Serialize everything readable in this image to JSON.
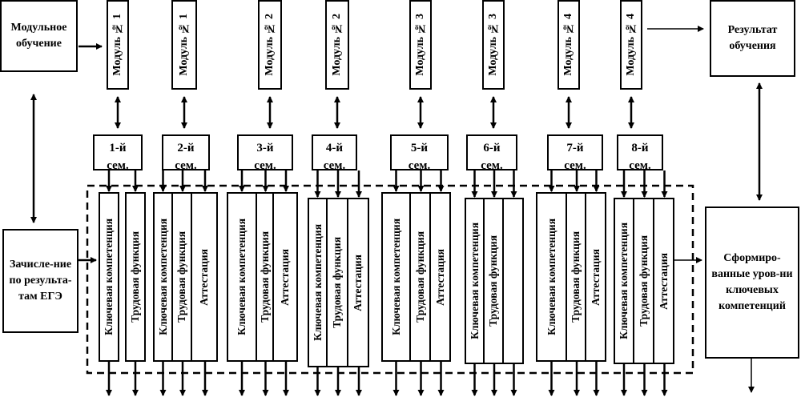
{
  "left": {
    "modular_learning": "Модульное обучение",
    "enrollment": "Зачисле-ние по результа-там ЕГЭ"
  },
  "right": {
    "learning_result": "Результат обучения",
    "formed_levels": "Сформиро-ванные уров-ни ключевых компетенций"
  },
  "modules": [
    "Модуль № 1",
    "Модуль № 1",
    "Модуль № 2",
    "Модуль № 2",
    "Модуль № 3",
    "Модуль № 3",
    "Модуль № 4",
    "Модуль № 4"
  ],
  "semesters": [
    {
      "num": "1-й",
      "label": "сем."
    },
    {
      "num": "2-й",
      "label": "сем."
    },
    {
      "num": "3-й",
      "label": "сем."
    },
    {
      "num": "4-й",
      "label": "сем."
    },
    {
      "num": "5-й",
      "label": "сем."
    },
    {
      "num": "6-й",
      "label": "сем."
    },
    {
      "num": "7-й",
      "label": "сем."
    },
    {
      "num": "8-й",
      "label": "сем."
    }
  ],
  "column_groups": [
    [
      "Ключевая компетенция",
      "Трудовая функция"
    ],
    [
      "Ключевая компетенция",
      "Трудовая функция",
      "Аттестация"
    ],
    [
      "Ключевая компетенция",
      "Трудовая функция",
      "Аттестация"
    ],
    [
      "Ключевая компетенция",
      "Трудовая функция",
      "Аттестация"
    ],
    [
      "Ключевая компетенция",
      "Трудовая функция",
      "Аттестация"
    ],
    [
      "Ключевая компетенция",
      "Трудовая функция",
      ""
    ],
    [
      "Ключевая компетенция",
      "Трудовая функция",
      "Аттестация"
    ],
    [
      "Ключевая компетенция",
      "Трудовая функция",
      "Аттестация"
    ]
  ]
}
